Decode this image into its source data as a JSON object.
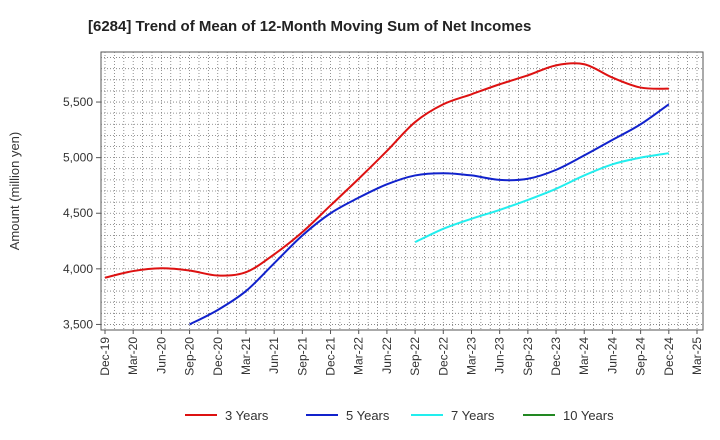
{
  "chart_data": {
    "type": "line",
    "title": "[6284]  Trend of Mean of 12-Month Moving Sum of Net Incomes",
    "xlabel": "",
    "ylabel": "Amount (million yen)",
    "x_ticks": [
      "Dec-19",
      "Mar-20",
      "Jun-20",
      "Sep-20",
      "Dec-20",
      "Mar-21",
      "Jun-21",
      "Sep-21",
      "Dec-21",
      "Mar-22",
      "Jun-22",
      "Sep-22",
      "Dec-22",
      "Mar-23",
      "Jun-23",
      "Sep-23",
      "Dec-23",
      "Mar-24",
      "Jun-24",
      "Sep-24",
      "Dec-24",
      "Mar-25"
    ],
    "y_ticks": [
      3500,
      4000,
      4500,
      5000,
      5500
    ],
    "y_tick_labels": [
      "3,500",
      "4,000",
      "4,500",
      "5,000",
      "5,500"
    ],
    "ylim": [
      3450,
      5950
    ],
    "grid": true,
    "legend_position": "bottom",
    "series": [
      {
        "name": "3 Years",
        "color": "#dd1111",
        "points": [
          [
            "Dec-19",
            3920
          ],
          [
            "Mar-20",
            3980
          ],
          [
            "Jun-20",
            4005
          ],
          [
            "Sep-20",
            3985
          ],
          [
            "Dec-20",
            3940
          ],
          [
            "Mar-21",
            3970
          ],
          [
            "Jun-21",
            4130
          ],
          [
            "Sep-21",
            4330
          ],
          [
            "Dec-21",
            4570
          ],
          [
            "Mar-22",
            4810
          ],
          [
            "Jun-22",
            5060
          ],
          [
            "Sep-22",
            5320
          ],
          [
            "Dec-22",
            5480
          ],
          [
            "Mar-23",
            5570
          ],
          [
            "Jun-23",
            5660
          ],
          [
            "Sep-23",
            5740
          ],
          [
            "Dec-23",
            5830
          ],
          [
            "Mar-24",
            5840
          ],
          [
            "Jun-24",
            5720
          ],
          [
            "Sep-24",
            5630
          ],
          [
            "Dec-24",
            5620
          ]
        ]
      },
      {
        "name": "5 Years",
        "color": "#1122cc",
        "points": [
          [
            "Sep-20",
            3500
          ],
          [
            "Dec-20",
            3630
          ],
          [
            "Mar-21",
            3800
          ],
          [
            "Jun-21",
            4050
          ],
          [
            "Sep-21",
            4300
          ],
          [
            "Dec-21",
            4500
          ],
          [
            "Mar-22",
            4640
          ],
          [
            "Jun-22",
            4760
          ],
          [
            "Sep-22",
            4840
          ],
          [
            "Dec-22",
            4860
          ],
          [
            "Mar-23",
            4840
          ],
          [
            "Jun-23",
            4800
          ],
          [
            "Sep-23",
            4810
          ],
          [
            "Dec-23",
            4890
          ],
          [
            "Mar-24",
            5020
          ],
          [
            "Jun-24",
            5160
          ],
          [
            "Sep-24",
            5300
          ],
          [
            "Dec-24",
            5480
          ]
        ]
      },
      {
        "name": "7 Years",
        "color": "#22eeee",
        "points": [
          [
            "Sep-22",
            4240
          ],
          [
            "Dec-22",
            4360
          ],
          [
            "Mar-23",
            4450
          ],
          [
            "Jun-23",
            4530
          ],
          [
            "Sep-23",
            4620
          ],
          [
            "Dec-23",
            4720
          ],
          [
            "Mar-24",
            4840
          ],
          [
            "Jun-24",
            4940
          ],
          [
            "Sep-24",
            5000
          ],
          [
            "Dec-24",
            5040
          ]
        ]
      },
      {
        "name": "10 Years",
        "color": "#228822",
        "points": []
      }
    ]
  }
}
